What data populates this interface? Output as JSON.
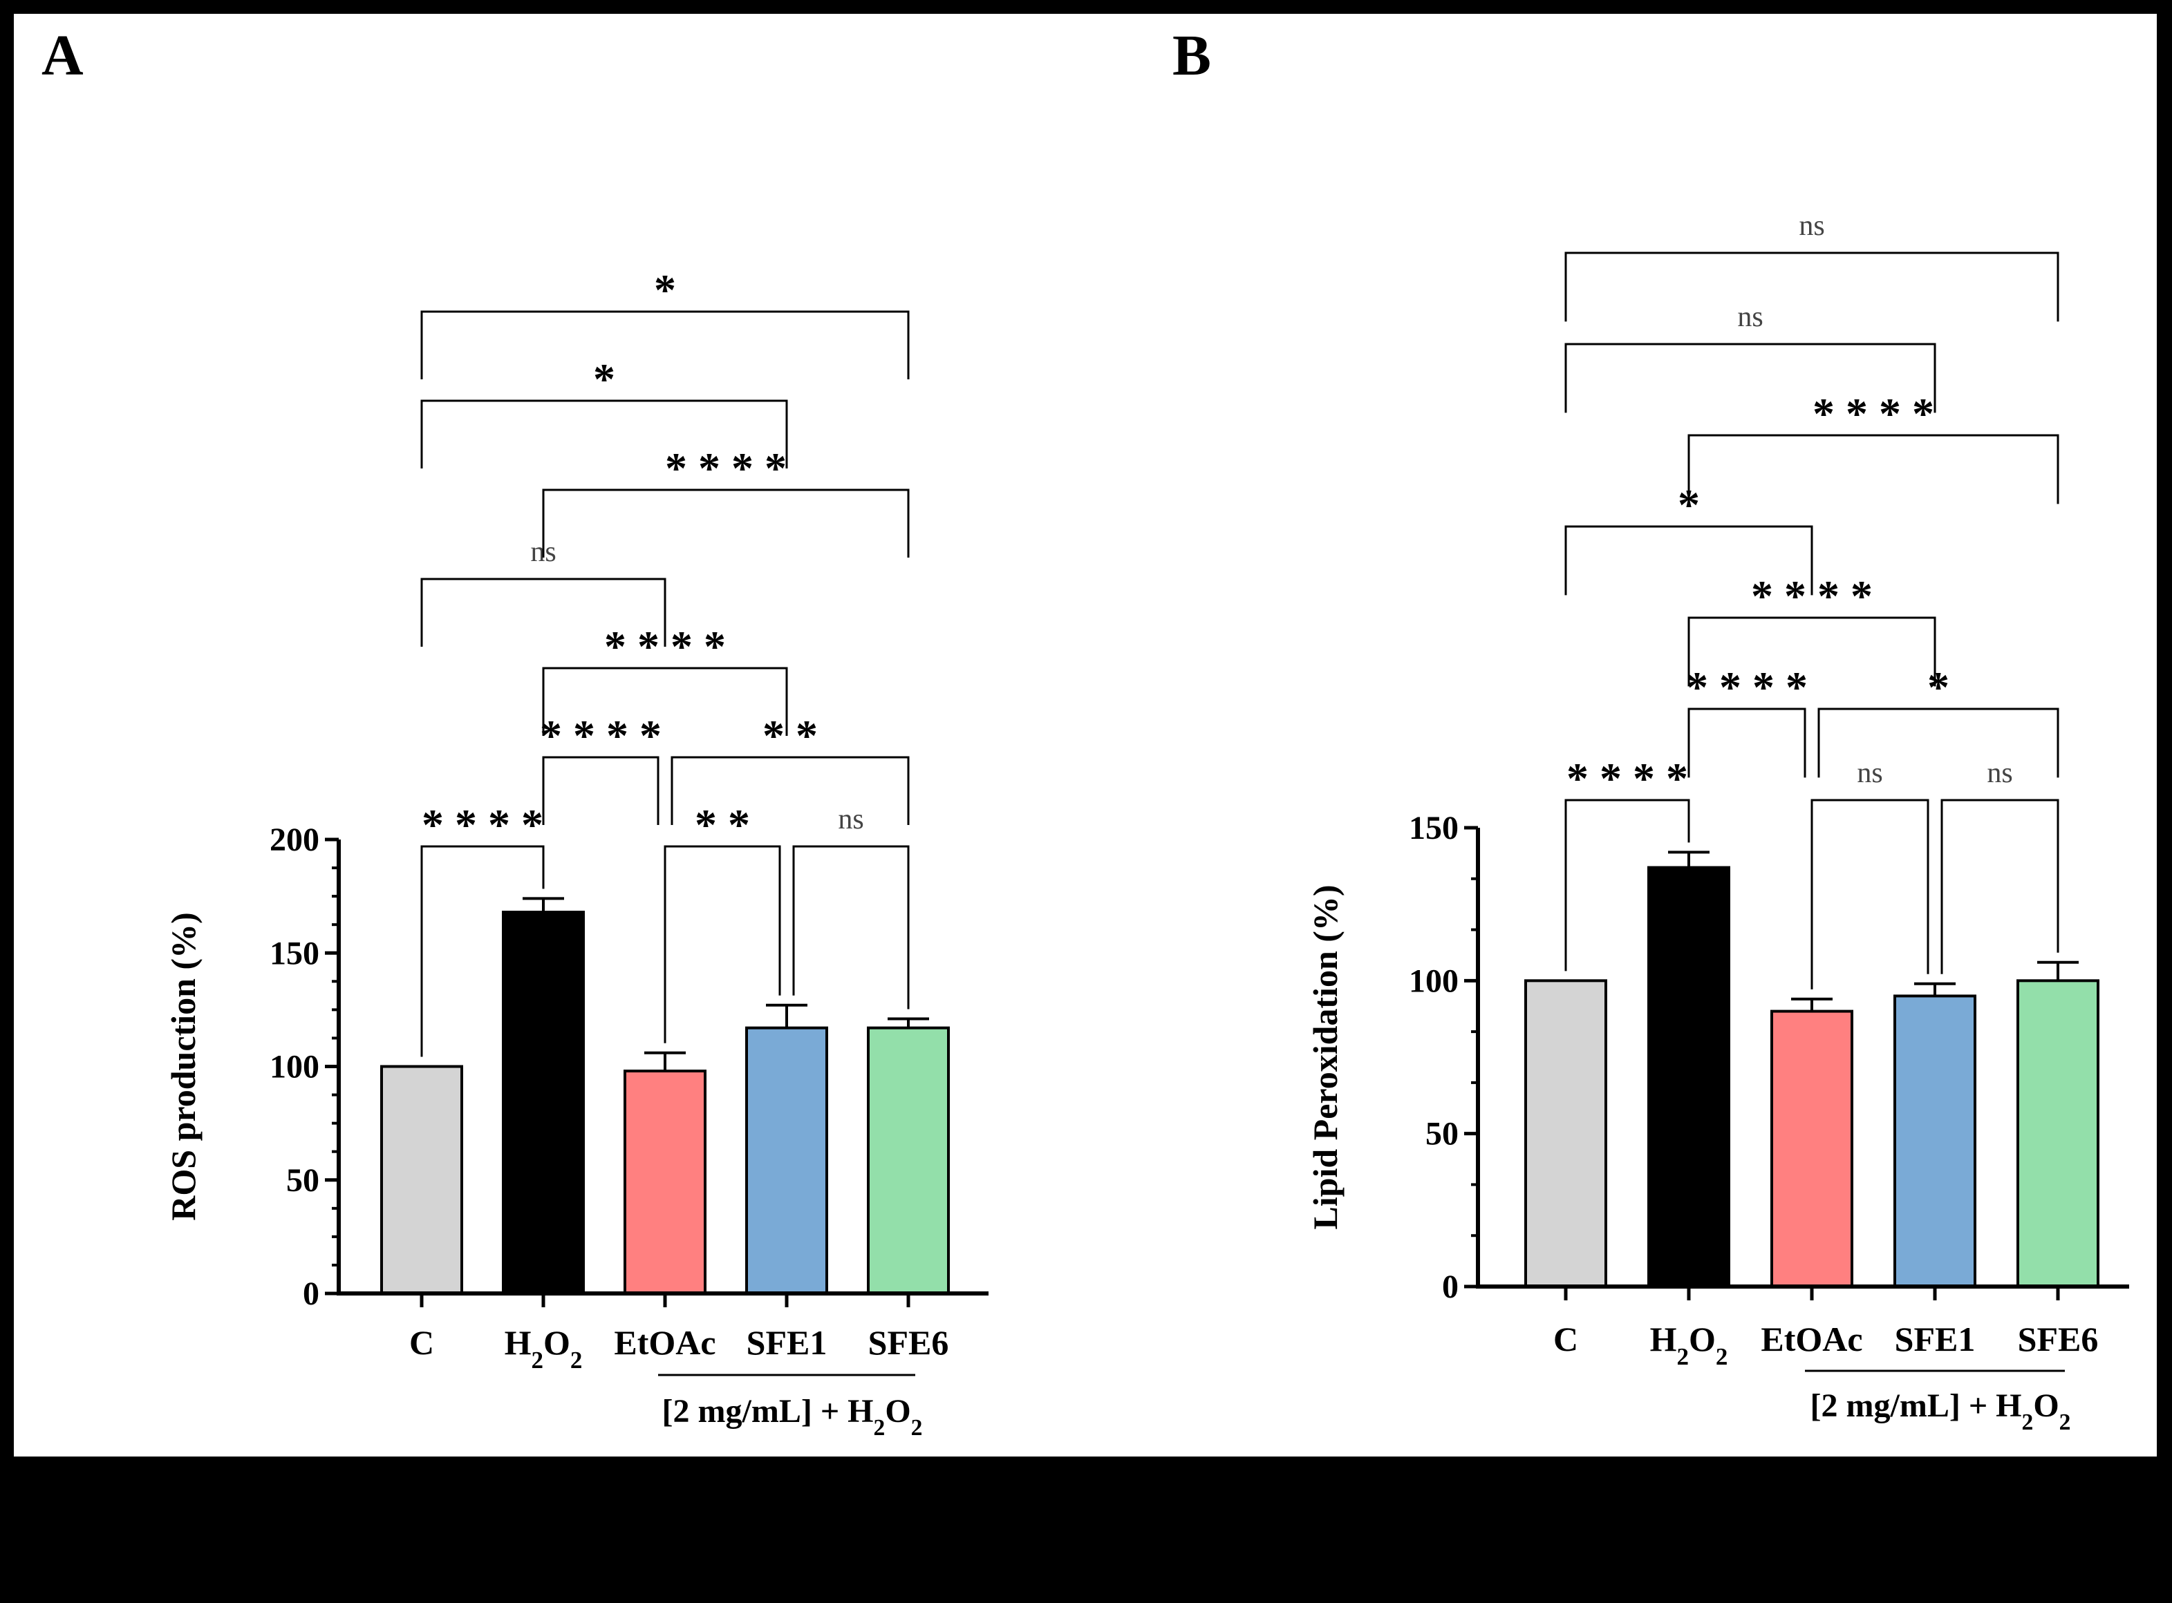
{
  "chart_data": [
    {
      "panel": "A",
      "type": "bar",
      "title": "",
      "ylabel": "ROS production (%)",
      "xlabel": "",
      "ylim": [
        0,
        200
      ],
      "yticks": [
        "0",
        "50",
        "100",
        "150",
        "200"
      ],
      "categories": [
        "C",
        "H2O2",
        "EtOAc",
        "SFE1",
        "SFE6"
      ],
      "category_labels": [
        {
          "main": "C",
          "sub": "",
          "tail": ""
        },
        {
          "main": "H",
          "sub": "2",
          "tail": "O",
          "sub2": "2"
        },
        {
          "main": "EtOAc",
          "sub": "",
          "tail": ""
        },
        {
          "main": "SFE1",
          "sub": "",
          "tail": ""
        },
        {
          "main": "SFE6",
          "sub": "",
          "tail": ""
        }
      ],
      "values": [
        100,
        168,
        98,
        117,
        117
      ],
      "errors": [
        0,
        6,
        8,
        10,
        4
      ],
      "colors": [
        "#d4d4d4",
        "#000000",
        "#ff8080",
        "#7aaad6",
        "#93dfaa"
      ],
      "group_label": {
        "text": "[2 mg/mL] + H",
        "sub": "2",
        "tail": "O",
        "sub2": "2",
        "span": [
          2,
          4
        ]
      },
      "comparisons": [
        {
          "from": 0,
          "to": 1,
          "label": "****",
          "level": 0
        },
        {
          "from": 2,
          "to": 3,
          "label": "**",
          "level": 0
        },
        {
          "from": 3,
          "to": 4,
          "label": "ns",
          "level": 0
        },
        {
          "from": 1,
          "to": 2,
          "label": "****",
          "level": 1
        },
        {
          "from": 2,
          "to": 4,
          "label": "**",
          "level": 1
        },
        {
          "from": 1,
          "to": 3,
          "label": "****",
          "level": 2
        },
        {
          "from": 0,
          "to": 2,
          "label": "ns",
          "level": 3
        },
        {
          "from": 1,
          "to": 4,
          "label": "****",
          "level": 4
        },
        {
          "from": 0,
          "to": 3,
          "label": "*",
          "level": 5
        },
        {
          "from": 0,
          "to": 4,
          "label": "*",
          "level": 6
        }
      ]
    },
    {
      "panel": "B",
      "type": "bar",
      "title": "",
      "ylabel": "Lipid Peroxidation (%)",
      "xlabel": "",
      "ylim": [
        0,
        150
      ],
      "yticks": [
        "0",
        "50",
        "100",
        "150"
      ],
      "categories": [
        "C",
        "H2O2",
        "EtOAc",
        "SFE1",
        "SFE6"
      ],
      "category_labels": [
        {
          "main": "C",
          "sub": "",
          "tail": ""
        },
        {
          "main": "H",
          "sub": "2",
          "tail": "O",
          "sub2": "2"
        },
        {
          "main": "EtOAc",
          "sub": "",
          "tail": ""
        },
        {
          "main": "SFE1",
          "sub": "",
          "tail": ""
        },
        {
          "main": "SFE6",
          "sub": "",
          "tail": ""
        }
      ],
      "values": [
        100,
        137,
        90,
        95,
        100
      ],
      "errors": [
        0,
        5,
        4,
        4,
        6
      ],
      "colors": [
        "#d4d4d4",
        "#000000",
        "#ff8080",
        "#7aaad6",
        "#93dfaa"
      ],
      "group_label": {
        "text": "[2 mg/mL] + H",
        "sub": "2",
        "tail": "O",
        "sub2": "2",
        "span": [
          2,
          4
        ]
      },
      "comparisons": [
        {
          "from": 0,
          "to": 1,
          "label": "****",
          "level": 0
        },
        {
          "from": 2,
          "to": 3,
          "label": "ns",
          "level": 0
        },
        {
          "from": 3,
          "to": 4,
          "label": "ns",
          "level": 0
        },
        {
          "from": 1,
          "to": 2,
          "label": "****",
          "level": 1
        },
        {
          "from": 2,
          "to": 4,
          "label": "*",
          "level": 1
        },
        {
          "from": 1,
          "to": 3,
          "label": "****",
          "level": 2
        },
        {
          "from": 0,
          "to": 2,
          "label": "*",
          "level": 3
        },
        {
          "from": 1,
          "to": 4,
          "label": "****",
          "level": 4
        },
        {
          "from": 0,
          "to": 3,
          "label": "ns",
          "level": 5
        },
        {
          "from": 0,
          "to": 4,
          "label": "ns",
          "level": 6
        }
      ]
    }
  ]
}
